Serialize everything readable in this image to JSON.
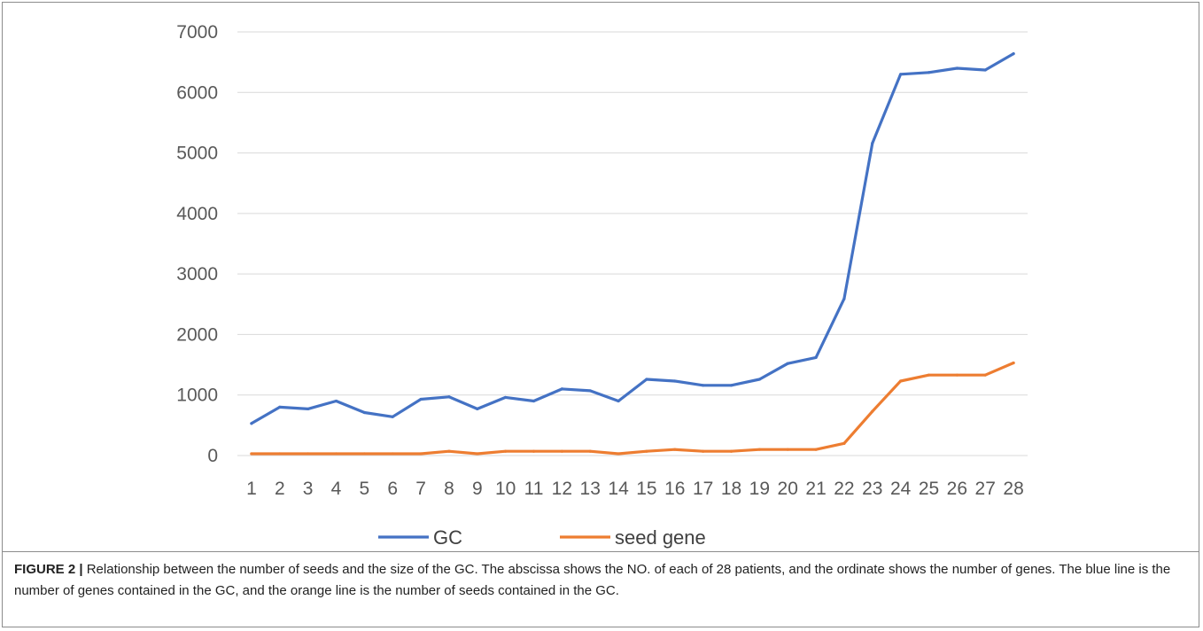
{
  "chart_data": {
    "type": "line",
    "categories": [
      "1",
      "2",
      "3",
      "4",
      "5",
      "6",
      "7",
      "8",
      "9",
      "10",
      "11",
      "12",
      "13",
      "14",
      "15",
      "16",
      "17",
      "18",
      "19",
      "20",
      "21",
      "22",
      "23",
      "24",
      "25",
      "26",
      "27",
      "28"
    ],
    "series": [
      {
        "name": "GC",
        "color": "#4472c4",
        "values": [
          530,
          800,
          770,
          900,
          710,
          640,
          930,
          970,
          770,
          960,
          900,
          1100,
          1070,
          900,
          1260,
          1230,
          1160,
          1160,
          1260,
          1520,
          1620,
          2590,
          5160,
          6300,
          6330,
          6400,
          6370,
          6640
        ]
      },
      {
        "name": "seed gene",
        "color": "#ed7d31",
        "values": [
          30,
          30,
          30,
          30,
          30,
          30,
          30,
          70,
          30,
          70,
          70,
          70,
          70,
          30,
          70,
          100,
          70,
          70,
          100,
          100,
          100,
          200,
          730,
          1230,
          1330,
          1330,
          1330,
          1530
        ]
      }
    ],
    "ylim": [
      0,
      7000
    ],
    "yticks": [
      "0",
      "1000",
      "2000",
      "3000",
      "4000",
      "5000",
      "6000",
      "7000"
    ],
    "grid": true,
    "legend_position": "bottom"
  },
  "caption": {
    "label": "FIGURE 2 |",
    "text": " Relationship between the number of seeds and the size of the GC. The abscissa shows the NO. of each of 28 patients, and the ordinate shows the number of genes. The blue line is the number of genes contained in the GC, and the orange line is the number of seeds contained in the GC."
  }
}
